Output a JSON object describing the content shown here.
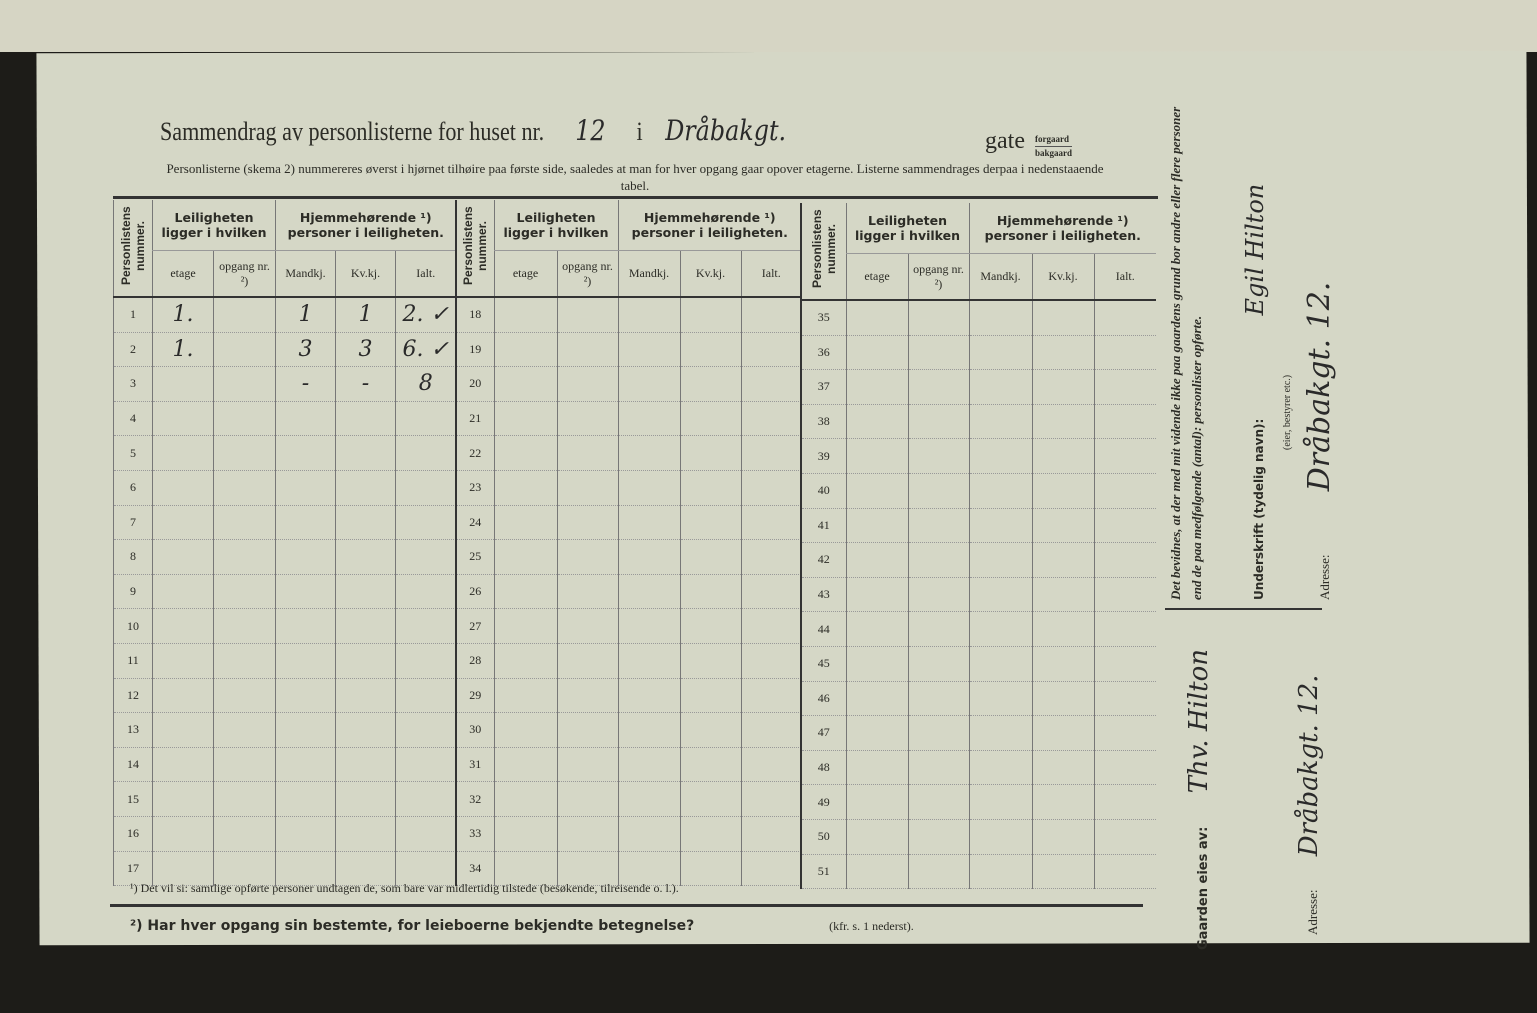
{
  "header": {
    "title": "Sammendrag av personlisterne for huset nr.",
    "house_nr": "12",
    "i": "i",
    "street": "Dråbakgt.",
    "gate": "gate",
    "forgaard": "forgaard",
    "bakgaard": "bakgaard",
    "instructions": "Personlisterne (skema 2) nummereres øverst i hjørnet tilhøire paa første side, saaledes at man for hver opgang gaar opover etagerne. Listerne sammendrages derpaa i nedenstaaende tabel."
  },
  "columns": {
    "num": "Personlistens nummer.",
    "apt_group": "Leiligheten ligger i hvilken",
    "etage": "etage",
    "opgang": "opgang nr. ²)",
    "res_group": "Hjemmehørende ¹) personer i leiligheten.",
    "mandkj": "Mandkj.",
    "kvkj": "Kv.kj.",
    "ialt": "Ialt."
  },
  "blocks": [
    {
      "rows": [
        {
          "n": "1",
          "etage": "1.",
          "mandkj": "1",
          "kvkj": "1",
          "ialt": "2. ✓"
        },
        {
          "n": "2",
          "etage": "1.",
          "mandkj": "3",
          "kvkj": "3",
          "ialt": "6. ✓"
        },
        {
          "n": "3",
          "mandkj": "-",
          "kvkj": "-",
          "ialt": "8"
        },
        {
          "n": "4"
        },
        {
          "n": "5"
        },
        {
          "n": "6"
        },
        {
          "n": "7"
        },
        {
          "n": "8"
        },
        {
          "n": "9"
        },
        {
          "n": "10"
        },
        {
          "n": "11"
        },
        {
          "n": "12"
        },
        {
          "n": "13"
        },
        {
          "n": "14"
        },
        {
          "n": "15"
        },
        {
          "n": "16"
        },
        {
          "n": "17"
        }
      ]
    },
    {
      "rows": [
        {
          "n": "18"
        },
        {
          "n": "19"
        },
        {
          "n": "20"
        },
        {
          "n": "21"
        },
        {
          "n": "22"
        },
        {
          "n": "23"
        },
        {
          "n": "24"
        },
        {
          "n": "25"
        },
        {
          "n": "26"
        },
        {
          "n": "27"
        },
        {
          "n": "28"
        },
        {
          "n": "29"
        },
        {
          "n": "30"
        },
        {
          "n": "31"
        },
        {
          "n": "32"
        },
        {
          "n": "33"
        },
        {
          "n": "34"
        }
      ]
    },
    {
      "rows": [
        {
          "n": "35"
        },
        {
          "n": "36"
        },
        {
          "n": "37"
        },
        {
          "n": "38"
        },
        {
          "n": "39"
        },
        {
          "n": "40"
        },
        {
          "n": "41"
        },
        {
          "n": "42"
        },
        {
          "n": "43"
        },
        {
          "n": "44"
        },
        {
          "n": "45"
        },
        {
          "n": "46"
        },
        {
          "n": "47"
        },
        {
          "n": "48"
        },
        {
          "n": "49"
        },
        {
          "n": "50"
        },
        {
          "n": "51"
        }
      ]
    }
  ],
  "footnotes": {
    "f1": "¹) Det vil si: samtlige opførte personer undtagen de, som bare var midlertidig tilstede (besøkende, tilreisende o. l.).",
    "f2": "²) Har hver opgang sin bestemte, for leieboerne bekjendte betegnelse?",
    "f2_ref": "(kfr. s. 1 nederst)."
  },
  "side": {
    "declaration": "Det bevidnes, at der med mit vidende ikke paa gaardens grund bor andre eller flere personer end de paa medfølgende (antal): personlister opførte.",
    "signature_label": "Underskrift (tydelig navn):",
    "signature": "Egil Hilton",
    "signature_note": "(eier, bestyrer etc.)",
    "address_label": "Adresse:",
    "address": "Dråbakgt. 12.",
    "owner_label": "Gaarden eies av:",
    "owner": "Thv. Hilton",
    "owner_address_label": "Adresse:",
    "owner_address": "Dråbakgt. 12."
  }
}
